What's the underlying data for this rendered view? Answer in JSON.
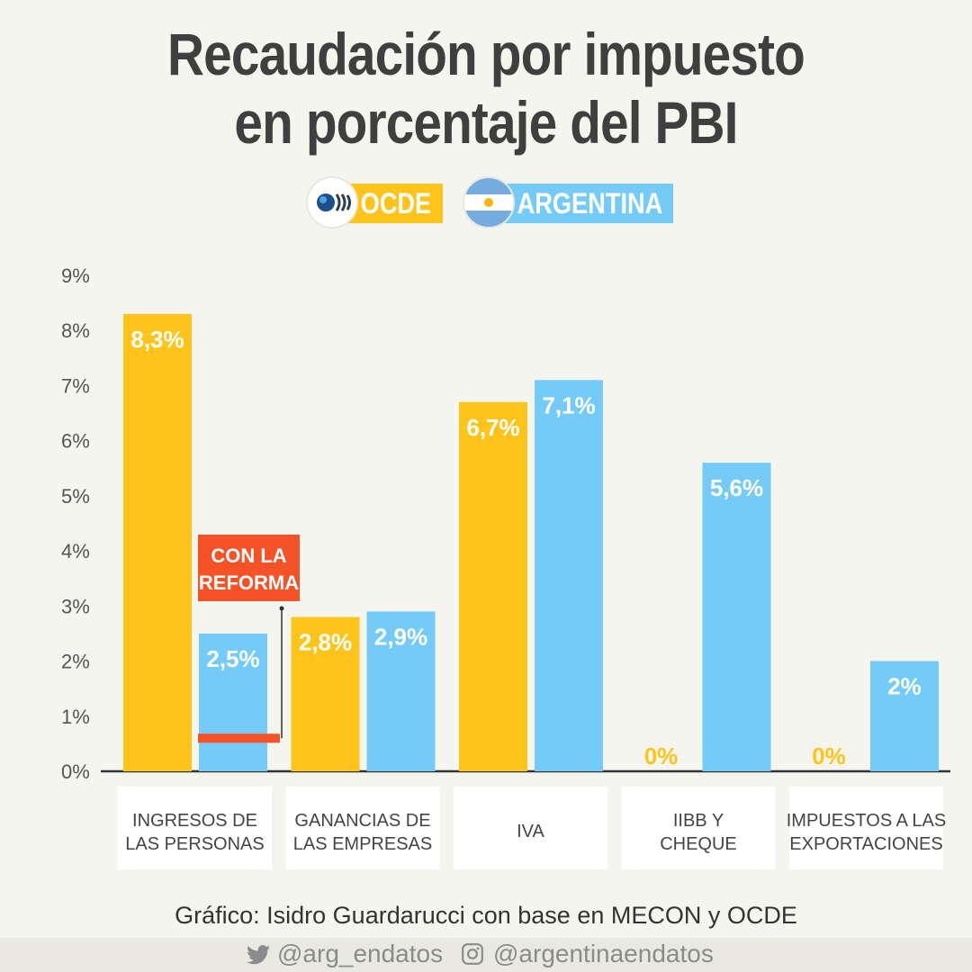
{
  "title": {
    "line1": "Recaudación por impuesto",
    "line2": "en porcentaje del PBI"
  },
  "legend": [
    {
      "label": "OCDE",
      "icon": "oecd-logo-icon",
      "color": "#fec41a"
    },
    {
      "label": "ARGENTINA",
      "icon": "argentina-flag-icon",
      "color": "#74cbf8"
    }
  ],
  "annotation": {
    "line1": "CON LA",
    "line2": "REFORMA",
    "color": "#f55327",
    "value": 0.6
  },
  "credit": "Gráfico: Isidro Guardarucci con base en MECON y OCDE",
  "social": {
    "twitter": "@arg_endatos",
    "twitter_icon": "twitter-icon",
    "instagram": "@argentinaendatos",
    "instagram_icon": "instagram-icon"
  },
  "chart_data": {
    "type": "bar",
    "ylim": [
      0,
      9
    ],
    "y_ticks": [
      "0%",
      "1%",
      "2%",
      "3%",
      "4%",
      "5%",
      "6%",
      "7%",
      "8%",
      "9%"
    ],
    "categories": [
      [
        "INGRESOS DE",
        "LAS PERSONAS"
      ],
      [
        "GANANCIAS DE",
        "LAS EMPRESAS"
      ],
      [
        "IVA"
      ],
      [
        "IIBB Y",
        "CHEQUE"
      ],
      [
        "IMPUESTOS A LAS",
        "EXPORTACIONES"
      ]
    ],
    "series": [
      {
        "name": "OCDE",
        "color": "#fec41a",
        "values": [
          8.3,
          2.8,
          6.7,
          0,
          0
        ],
        "labels": [
          "8,3%",
          "2,8%",
          "6,7%",
          "0%",
          "0%"
        ]
      },
      {
        "name": "ARGENTINA",
        "color": "#74cbf8",
        "values": [
          2.5,
          2.9,
          7.1,
          5.6,
          2
        ],
        "labels": [
          "2,5%",
          "2,9%",
          "7,1%",
          "5,6%",
          "2%"
        ]
      }
    ]
  }
}
